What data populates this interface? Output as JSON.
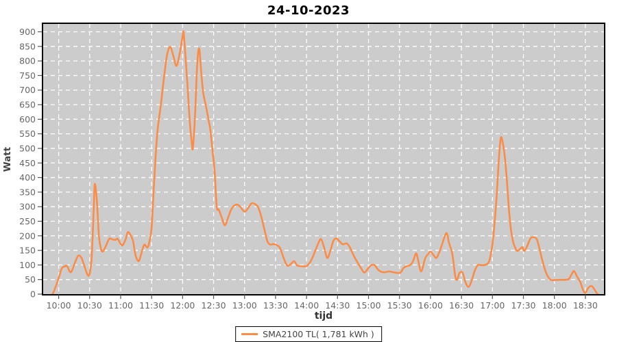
{
  "title": "24-10-2023",
  "colors": {
    "series": "#fa8c48",
    "plot_bg": "#cccccc",
    "grid": "#ffffff",
    "axis_border": "#000000",
    "tick": "#555555",
    "tick_label": "#666666",
    "title_color": "#000000",
    "axis_label": "#444444",
    "legend_border": "#000000",
    "legend_bg": "#ffffff",
    "legend_text": "#444444"
  },
  "legend": {
    "label": "SMA2100 TL( 1,781 kWh )"
  },
  "chart_data": {
    "type": "line",
    "title": "24-10-2023",
    "xlabel": "tijd",
    "ylabel": "Watt",
    "grid": true,
    "legend_position": "bottom-center",
    "x_domain": [
      "09:45",
      "18:48"
    ],
    "ylim": [
      0,
      927
    ],
    "x_ticks": [
      "10:00",
      "10:30",
      "11:00",
      "11:30",
      "12:00",
      "12:30",
      "13:00",
      "13:30",
      "14:00",
      "14:30",
      "15:00",
      "15:30",
      "16:00",
      "16:30",
      "17:00",
      "17:30",
      "18:00",
      "18:30"
    ],
    "y_ticks": [
      0,
      50,
      100,
      150,
      200,
      250,
      300,
      350,
      400,
      450,
      500,
      550,
      600,
      650,
      700,
      750,
      800,
      850,
      900
    ],
    "series": [
      {
        "name": "SMA2100 TL( 1,781 kWh )",
        "color": "#fa8c48",
        "points": [
          [
            "09:54",
            0
          ],
          [
            "09:56",
            15
          ],
          [
            "10:00",
            55
          ],
          [
            "10:03",
            88
          ],
          [
            "10:06",
            95
          ],
          [
            "10:08",
            97
          ],
          [
            "10:11",
            76
          ],
          [
            "10:13",
            82
          ],
          [
            "10:16",
            110
          ],
          [
            "10:19",
            132
          ],
          [
            "10:22",
            125
          ],
          [
            "10:25",
            95
          ],
          [
            "10:28",
            66
          ],
          [
            "10:30",
            70
          ],
          [
            "10:32",
            130
          ],
          [
            "10:34",
            300
          ],
          [
            "10:35",
            378
          ],
          [
            "10:37",
            320
          ],
          [
            "10:39",
            200
          ],
          [
            "10:41",
            155
          ],
          [
            "10:43",
            147
          ],
          [
            "10:46",
            168
          ],
          [
            "10:49",
            190
          ],
          [
            "10:52",
            188
          ],
          [
            "10:55",
            186
          ],
          [
            "10:57",
            190
          ],
          [
            "11:00",
            172
          ],
          [
            "11:02",
            168
          ],
          [
            "11:05",
            190
          ],
          [
            "11:07",
            213
          ],
          [
            "11:10",
            200
          ],
          [
            "11:12",
            182
          ],
          [
            "11:14",
            140
          ],
          [
            "11:16",
            118
          ],
          [
            "11:18",
            116
          ],
          [
            "11:21",
            152
          ],
          [
            "11:23",
            170
          ],
          [
            "11:26",
            160
          ],
          [
            "11:28",
            183
          ],
          [
            "11:30",
            230
          ],
          [
            "11:32",
            360
          ],
          [
            "11:34",
            480
          ],
          [
            "11:36",
            570
          ],
          [
            "11:39",
            650
          ],
          [
            "11:42",
            745
          ],
          [
            "11:45",
            822
          ],
          [
            "11:48",
            848
          ],
          [
            "11:51",
            818
          ],
          [
            "11:54",
            783
          ],
          [
            "11:57",
            822
          ],
          [
            "12:00",
            885
          ],
          [
            "12:01",
            896
          ],
          [
            "12:03",
            805
          ],
          [
            "12:05",
            700
          ],
          [
            "12:07",
            590
          ],
          [
            "12:09",
            515
          ],
          [
            "12:10",
            503
          ],
          [
            "12:12",
            610
          ],
          [
            "12:14",
            780
          ],
          [
            "12:16",
            843
          ],
          [
            "12:18",
            762
          ],
          [
            "12:20",
            690
          ],
          [
            "12:23",
            638
          ],
          [
            "12:25",
            600
          ],
          [
            "12:27",
            560
          ],
          [
            "12:29",
            490
          ],
          [
            "12:31",
            420
          ],
          [
            "12:33",
            300
          ],
          [
            "12:35",
            290
          ],
          [
            "12:38",
            262
          ],
          [
            "12:41",
            236
          ],
          [
            "12:44",
            262
          ],
          [
            "12:47",
            290
          ],
          [
            "12:50",
            304
          ],
          [
            "12:53",
            307
          ],
          [
            "12:56",
            299
          ],
          [
            "13:00",
            283
          ],
          [
            "13:04",
            298
          ],
          [
            "13:07",
            312
          ],
          [
            "13:10",
            309
          ],
          [
            "13:13",
            299
          ],
          [
            "13:16",
            268
          ],
          [
            "13:19",
            225
          ],
          [
            "13:22",
            182
          ],
          [
            "13:25",
            170
          ],
          [
            "13:28",
            172
          ],
          [
            "13:31",
            168
          ],
          [
            "13:34",
            160
          ],
          [
            "13:37",
            132
          ],
          [
            "13:40",
            105
          ],
          [
            "13:42",
            97
          ],
          [
            "13:45",
            104
          ],
          [
            "13:48",
            113
          ],
          [
            "13:51",
            98
          ],
          [
            "13:55",
            96
          ],
          [
            "14:00",
            96
          ],
          [
            "14:04",
            113
          ],
          [
            "14:07",
            136
          ],
          [
            "14:11",
            171
          ],
          [
            "14:14",
            189
          ],
          [
            "14:17",
            160
          ],
          [
            "14:20",
            124
          ],
          [
            "14:23",
            148
          ],
          [
            "14:26",
            183
          ],
          [
            "14:29",
            191
          ],
          [
            "14:32",
            181
          ],
          [
            "14:35",
            171
          ],
          [
            "14:39",
            174
          ],
          [
            "14:42",
            160
          ],
          [
            "14:46",
            130
          ],
          [
            "14:50",
            105
          ],
          [
            "14:53",
            88
          ],
          [
            "14:56",
            74
          ],
          [
            "15:00",
            90
          ],
          [
            "15:03",
            100
          ],
          [
            "15:06",
            99
          ],
          [
            "15:09",
            85
          ],
          [
            "15:12",
            77
          ],
          [
            "15:16",
            75
          ],
          [
            "15:20",
            78
          ],
          [
            "15:24",
            75
          ],
          [
            "15:28",
            73
          ],
          [
            "15:31",
            74
          ],
          [
            "15:34",
            90
          ],
          [
            "15:37",
            96
          ],
          [
            "15:40",
            99
          ],
          [
            "15:43",
            112
          ],
          [
            "15:46",
            140
          ],
          [
            "15:48",
            118
          ],
          [
            "15:51",
            78
          ],
          [
            "15:55",
            124
          ],
          [
            "15:58",
            138
          ],
          [
            "16:00",
            146
          ],
          [
            "16:03",
            134
          ],
          [
            "16:06",
            125
          ],
          [
            "16:10",
            158
          ],
          [
            "16:14",
            200
          ],
          [
            "16:16",
            208
          ],
          [
            "16:18",
            175
          ],
          [
            "16:21",
            140
          ],
          [
            "16:24",
            62
          ],
          [
            "16:26",
            50
          ],
          [
            "16:28",
            72
          ],
          [
            "16:31",
            74
          ],
          [
            "16:34",
            40
          ],
          [
            "16:37",
            25
          ],
          [
            "16:40",
            48
          ],
          [
            "16:43",
            82
          ],
          [
            "16:46",
            100
          ],
          [
            "16:50",
            99
          ],
          [
            "16:54",
            102
          ],
          [
            "16:57",
            115
          ],
          [
            "17:00",
            171
          ],
          [
            "17:02",
            242
          ],
          [
            "17:04",
            330
          ],
          [
            "17:06",
            450
          ],
          [
            "17:08",
            535
          ],
          [
            "17:10",
            519
          ],
          [
            "17:12",
            470
          ],
          [
            "17:14",
            390
          ],
          [
            "17:16",
            290
          ],
          [
            "17:18",
            220
          ],
          [
            "17:20",
            180
          ],
          [
            "17:22",
            160
          ],
          [
            "17:24",
            148
          ],
          [
            "17:27",
            156
          ],
          [
            "17:29",
            161
          ],
          [
            "17:31",
            148
          ],
          [
            "17:34",
            168
          ],
          [
            "17:37",
            192
          ],
          [
            "17:40",
            195
          ],
          [
            "17:43",
            188
          ],
          [
            "17:46",
            150
          ],
          [
            "17:48",
            120
          ],
          [
            "17:52",
            73
          ],
          [
            "17:56",
            50
          ],
          [
            "18:00",
            48
          ],
          [
            "18:05",
            49
          ],
          [
            "18:10",
            49
          ],
          [
            "18:14",
            52
          ],
          [
            "18:17",
            70
          ],
          [
            "18:19",
            79
          ],
          [
            "18:22",
            60
          ],
          [
            "18:25",
            42
          ],
          [
            "18:28",
            12
          ],
          [
            "18:30",
            5
          ],
          [
            "18:33",
            22
          ],
          [
            "18:36",
            28
          ],
          [
            "18:39",
            15
          ],
          [
            "18:41",
            3
          ],
          [
            "18:42",
            0
          ]
        ]
      }
    ]
  }
}
